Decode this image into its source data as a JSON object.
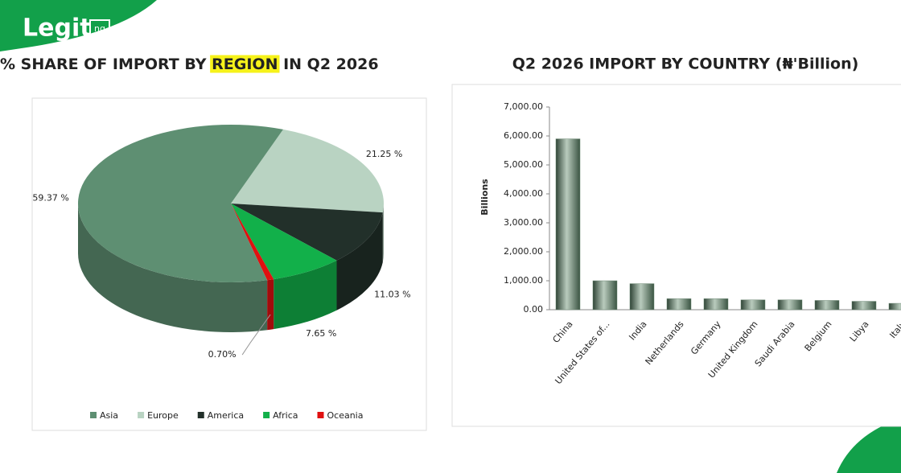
{
  "logo": {
    "text": "Legit",
    "suffix": "ng"
  },
  "chart_data": [
    {
      "type": "pie",
      "title": [
        "% SHARE OF IMPORT BY ",
        "REGION",
        " IN Q2 2026"
      ],
      "title_highlight": {
        "index": 1,
        "color": "#f6f21a"
      },
      "categories": [
        "Asia",
        "Europe",
        "America",
        "Africa",
        "Oceania"
      ],
      "values": [
        59.37,
        21.25,
        11.03,
        7.65,
        0.7
      ],
      "value_labels": [
        "59.37 %",
        "21.25 %",
        "11.03 %",
        "7.65 %",
        "0.70%"
      ],
      "colors": [
        "#5e8f72",
        "#b9d3c2",
        "#22302a",
        "#12b04a",
        "#e01010"
      ],
      "legend": "bottom"
    },
    {
      "type": "bar",
      "title": "Q2 2026 IMPORT BY COUNTRY (₦'Billion)",
      "y_label": "Billions",
      "categories": [
        "China",
        "United States of...",
        "India",
        "Netherlands",
        "Germany",
        "United Kingdom",
        "Saudi Arabia",
        "Belgium",
        "Libya",
        "Italy"
      ],
      "values": [
        5900,
        1000,
        900,
        380,
        380,
        340,
        340,
        320,
        290,
        220
      ],
      "color": "#6f8a76",
      "ylim": [
        0,
        7000
      ],
      "yticks": [
        {
          "value": 0,
          "label": "0.00"
        },
        {
          "value": 1000,
          "label": "1,000.00"
        },
        {
          "value": 2000,
          "label": "2,000.00"
        },
        {
          "value": 3000,
          "label": "3,000.00"
        },
        {
          "value": 4000,
          "label": "4,000.00"
        },
        {
          "value": 5000,
          "label": "5,000.00"
        },
        {
          "value": 6000,
          "label": "6,000.00"
        },
        {
          "value": 7000,
          "label": "7,000.00"
        }
      ],
      "grid": false
    }
  ]
}
